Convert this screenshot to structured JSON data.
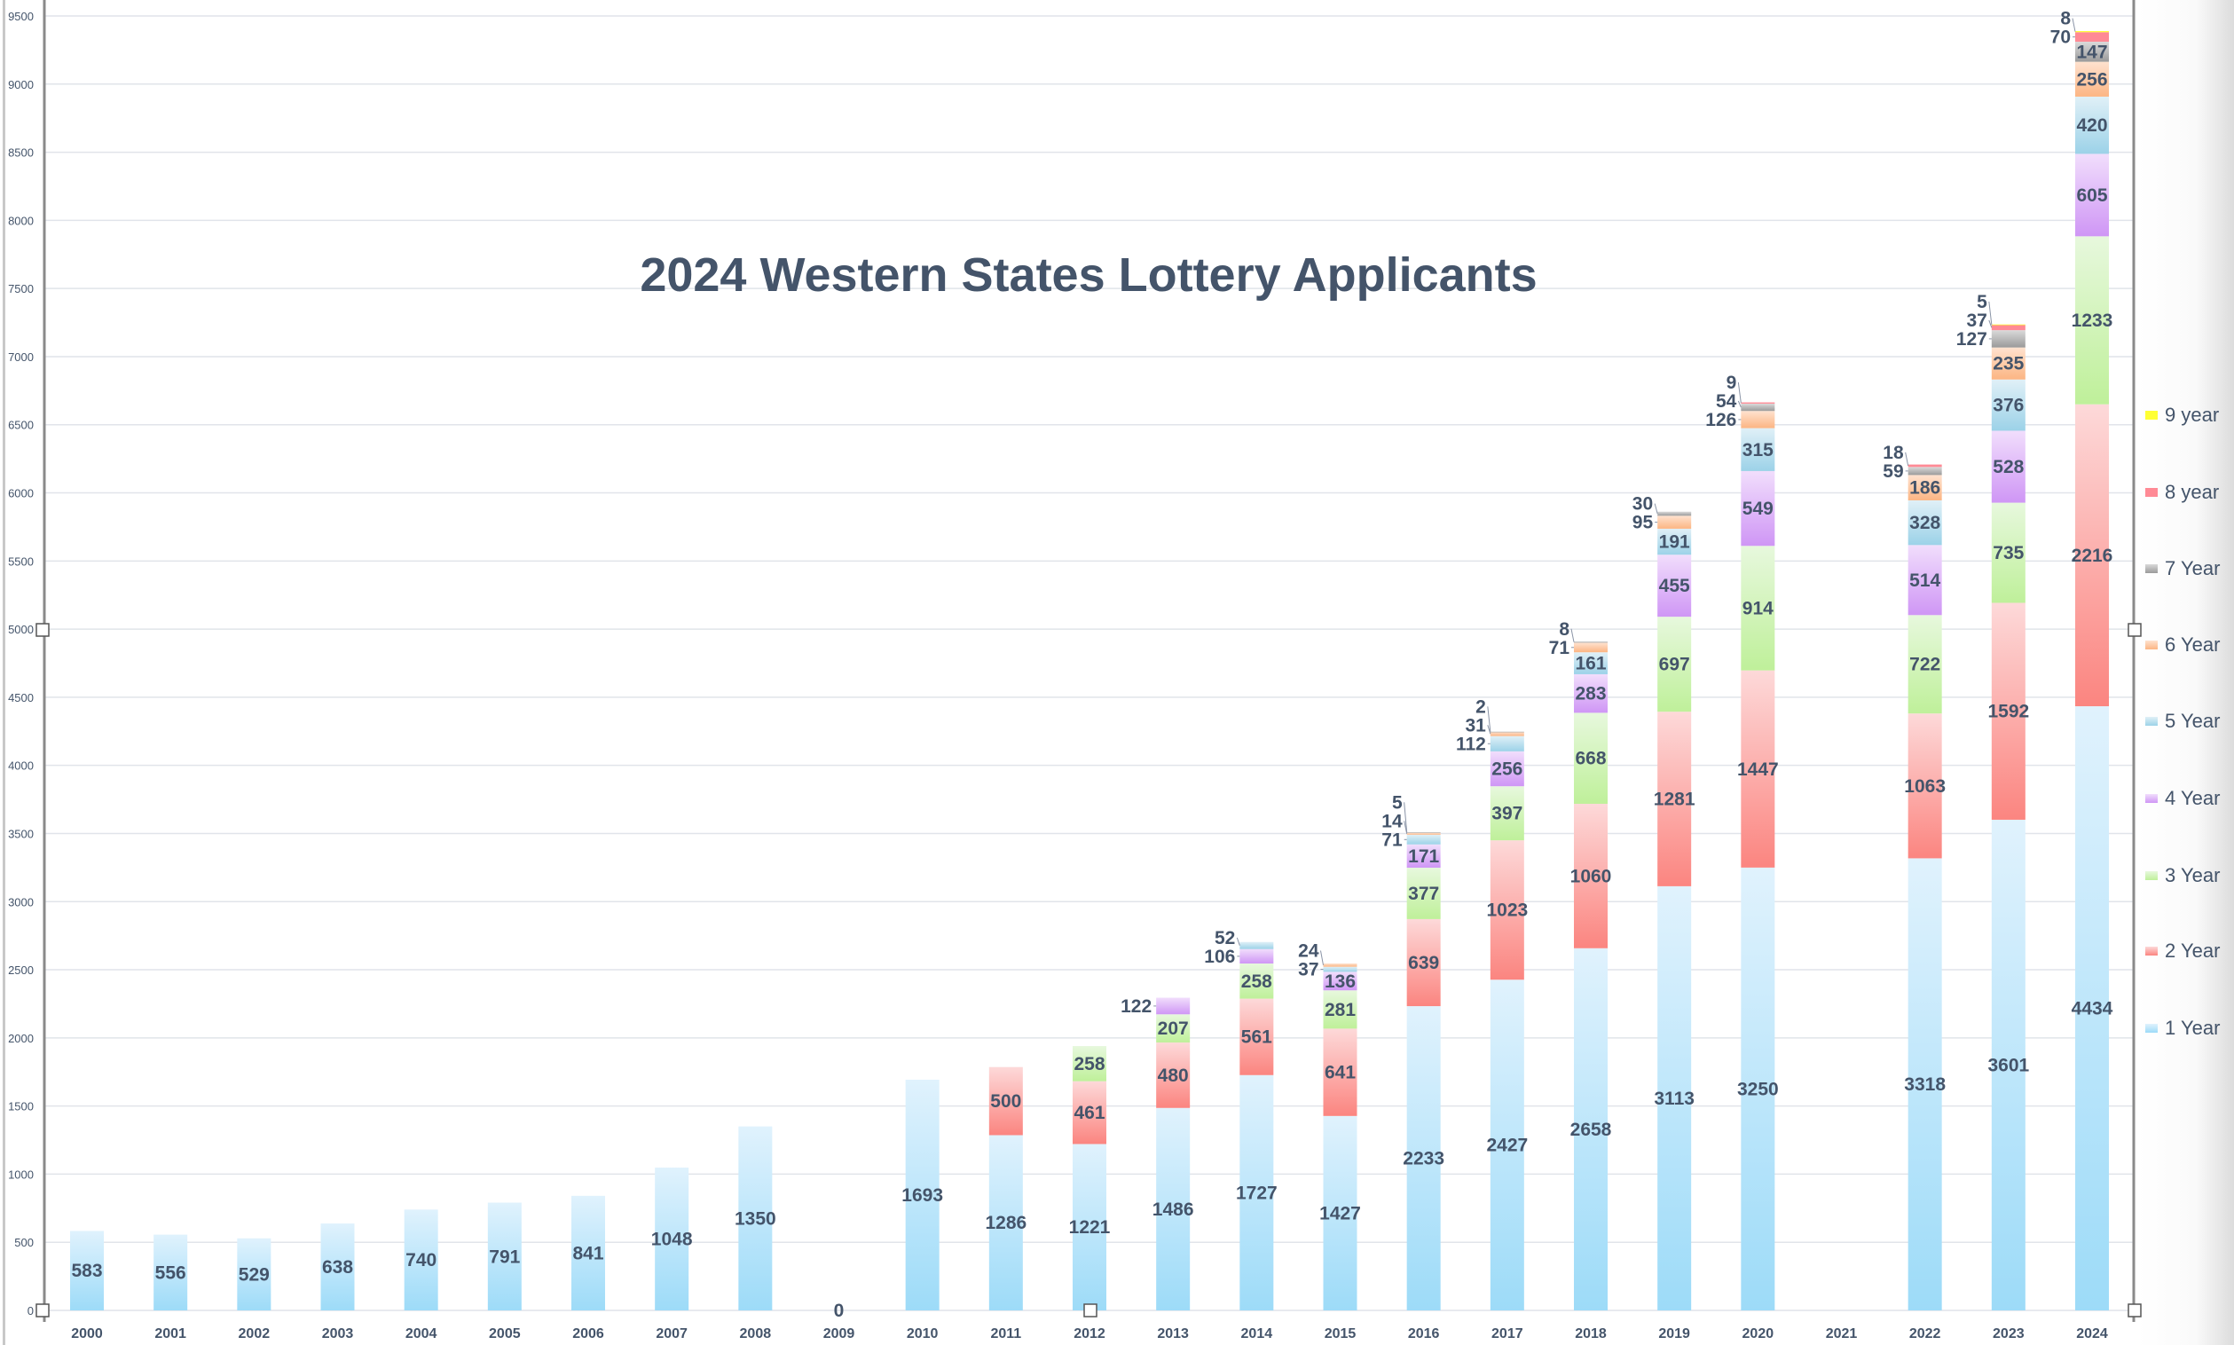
{
  "chart_data": {
    "type": "bar",
    "stacked": true,
    "title": "2024 Western States Lottery Applicants",
    "xlabel": "",
    "ylabel": "",
    "ylim": [
      0,
      9500
    ],
    "yticks": [
      0,
      500,
      1000,
      1500,
      2000,
      2500,
      3000,
      3500,
      4000,
      4500,
      5000,
      5500,
      6000,
      6500,
      7000,
      7500,
      8000,
      8500,
      9000,
      9500
    ],
    "grid": true,
    "legend_position": "right",
    "categories": [
      "2000",
      "2001",
      "2002",
      "2003",
      "2004",
      "2005",
      "2006",
      "2007",
      "2008",
      "2009",
      "2010",
      "2011",
      "2012",
      "2013",
      "2014",
      "2015",
      "2016",
      "2017",
      "2018",
      "2019",
      "2020",
      "2021",
      "2022",
      "2023",
      "2024"
    ],
    "series": [
      {
        "name": "1 Year",
        "colors": [
          "#e0f2fd",
          "#9ddbf8"
        ],
        "values": [
          583,
          556,
          529,
          638,
          740,
          791,
          841,
          1048,
          1350,
          0,
          1693,
          1286,
          1221,
          1486,
          1727,
          1427,
          2233,
          2427,
          2658,
          3113,
          3250,
          null,
          3318,
          3601,
          4434
        ]
      },
      {
        "name": "2 Year",
        "colors": [
          "#fdd9d9",
          "#fb8580"
        ],
        "values": [
          null,
          null,
          null,
          null,
          null,
          null,
          null,
          null,
          null,
          null,
          null,
          500,
          461,
          480,
          561,
          641,
          639,
          1023,
          1060,
          1281,
          1447,
          null,
          1063,
          1592,
          2216
        ]
      },
      {
        "name": "3 Year",
        "colors": [
          "#e7f8dd",
          "#bff09a"
        ],
        "values": [
          null,
          null,
          null,
          null,
          null,
          null,
          null,
          null,
          null,
          null,
          null,
          null,
          258,
          207,
          258,
          281,
          377,
          397,
          668,
          697,
          914,
          null,
          722,
          735,
          1233
        ]
      },
      {
        "name": "4 Year",
        "colors": [
          "#f1defc",
          "#cf96f5"
        ],
        "values": [
          null,
          null,
          null,
          null,
          null,
          null,
          null,
          null,
          null,
          null,
          null,
          null,
          null,
          122,
          106,
          136,
          171,
          256,
          283,
          455,
          549,
          null,
          514,
          528,
          605
        ]
      },
      {
        "name": "5 Year",
        "colors": [
          "#e0f0f7",
          "#9cd2e8"
        ],
        "values": [
          null,
          null,
          null,
          null,
          null,
          null,
          null,
          null,
          null,
          null,
          null,
          null,
          null,
          null,
          52,
          37,
          71,
          112,
          161,
          191,
          315,
          null,
          328,
          376,
          420
        ]
      },
      {
        "name": "6 Year",
        "colors": [
          "#fee2cf",
          "#fcb583"
        ],
        "values": [
          null,
          null,
          null,
          null,
          null,
          null,
          null,
          null,
          null,
          null,
          null,
          null,
          null,
          null,
          null,
          24,
          14,
          31,
          71,
          95,
          126,
          null,
          186,
          235,
          256
        ]
      },
      {
        "name": "7 Year",
        "colors": [
          "#dadada",
          "#9a9a9a"
        ],
        "values": [
          null,
          null,
          null,
          null,
          null,
          null,
          null,
          null,
          null,
          null,
          null,
          null,
          null,
          null,
          null,
          null,
          5,
          2,
          8,
          30,
          54,
          null,
          59,
          127,
          147
        ]
      },
      {
        "name": "8 year",
        "colors": [
          "#ff8a95",
          "#ff8a95"
        ],
        "values": [
          null,
          null,
          null,
          null,
          null,
          null,
          null,
          null,
          null,
          null,
          null,
          null,
          null,
          null,
          null,
          null,
          null,
          null,
          null,
          null,
          9,
          null,
          18,
          37,
          70
        ]
      },
      {
        "name": "9 year",
        "colors": [
          "#ffff33",
          "#ffff33"
        ],
        "values": [
          null,
          null,
          null,
          null,
          null,
          null,
          null,
          null,
          null,
          null,
          null,
          null,
          null,
          null,
          null,
          null,
          null,
          null,
          null,
          null,
          null,
          null,
          null,
          5,
          8
        ]
      }
    ],
    "text_color": "#44546a",
    "grid_color": "#e1e4ea"
  }
}
